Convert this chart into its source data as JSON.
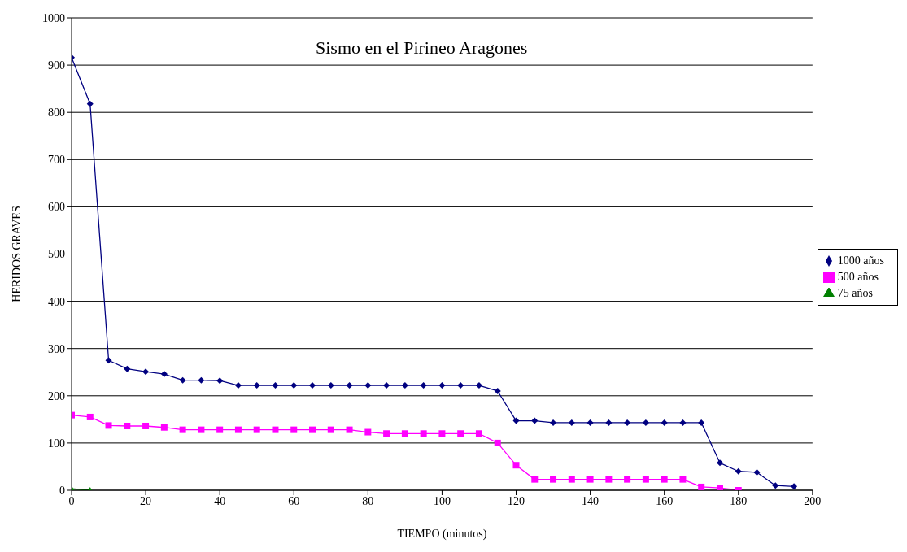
{
  "chart_data": {
    "type": "line",
    "title": "Sismo en el Pirineo Aragones",
    "xlabel": "TIEMPO (minutos)",
    "ylabel": "HERIDOS GRAVES",
    "xlim": [
      0,
      200
    ],
    "xticks": [
      0,
      20,
      40,
      60,
      80,
      100,
      120,
      140,
      160,
      180,
      200
    ],
    "ylim": [
      0,
      1000
    ],
    "yticks": [
      0,
      100,
      200,
      300,
      400,
      500,
      600,
      700,
      800,
      900,
      1000
    ],
    "grid": "y",
    "legend": "right",
    "series": [
      {
        "name": "1000 años",
        "color": "#000080",
        "marker": "diamond",
        "x": [
          0,
          5,
          10,
          15,
          20,
          25,
          30,
          35,
          40,
          45,
          50,
          55,
          60,
          65,
          70,
          75,
          80,
          85,
          90,
          95,
          100,
          105,
          110,
          115,
          120,
          125,
          130,
          135,
          140,
          145,
          150,
          155,
          160,
          165,
          170,
          175,
          180,
          185,
          190,
          195
        ],
        "values": [
          916,
          818,
          275,
          257,
          251,
          246,
          233,
          233,
          232,
          222,
          222,
          222,
          222,
          222,
          222,
          222,
          222,
          222,
          222,
          222,
          222,
          222,
          222,
          210,
          147,
          147,
          143,
          143,
          143,
          143,
          143,
          143,
          143,
          143,
          143,
          58,
          40,
          38,
          10,
          8
        ]
      },
      {
        "name": "500 años",
        "color": "#ff00ff",
        "marker": "square",
        "x": [
          0,
          5,
          10,
          15,
          20,
          25,
          30,
          35,
          40,
          45,
          50,
          55,
          60,
          65,
          70,
          75,
          80,
          85,
          90,
          95,
          100,
          105,
          110,
          115,
          120,
          125,
          130,
          135,
          140,
          145,
          150,
          155,
          160,
          165,
          170,
          175,
          180
        ],
        "values": [
          159,
          155,
          137,
          136,
          136,
          133,
          128,
          128,
          128,
          128,
          128,
          128,
          128,
          128,
          128,
          128,
          123,
          120,
          120,
          120,
          120,
          120,
          120,
          100,
          53,
          23,
          23,
          23,
          23,
          23,
          23,
          23,
          23,
          23,
          7,
          5,
          0
        ]
      },
      {
        "name": "75 años",
        "color": "#008000",
        "marker": "triangle",
        "x": [
          0,
          5
        ],
        "values": [
          3,
          0
        ]
      }
    ]
  }
}
